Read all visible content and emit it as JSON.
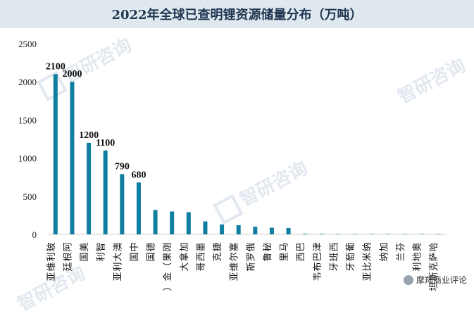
{
  "chart_data": {
    "type": "bar",
    "title": "2022年全球已查明锂资源储量分布（万吨）",
    "categories": [
      "玻利维亚",
      "阿根廷",
      "美国",
      "智利",
      "澳大利亚",
      "中国",
      "德国",
      "刚果（金）",
      "加拿大",
      "墨西哥",
      "捷克",
      "塞尔维亚",
      "俄罗斯",
      "秘鲁",
      "马里",
      "巴西",
      "津巴布韦",
      "西班牙",
      "葡萄牙",
      "纳米比亚",
      "加纳",
      "芬兰",
      "奥地利",
      "哈萨克斯坦"
    ],
    "values": [
      2100,
      2000,
      1200,
      1100,
      790,
      680,
      320,
      300,
      290,
      170,
      130,
      120,
      100,
      88,
      84,
      8,
      6,
      5,
      5,
      5,
      5,
      5,
      5,
      5
    ],
    "data_labels": [
      "2100",
      "2000",
      "1200",
      "1100",
      "790",
      "680",
      "",
      "",
      "",
      "",
      "",
      "",
      "",
      "",
      "",
      "",
      "",
      "",
      "",
      "",
      "",
      "",
      "",
      ""
    ],
    "ylim": [
      0,
      2500
    ],
    "yticks": [
      0,
      500,
      1000,
      1500,
      2000,
      2500
    ],
    "xlabel": "",
    "ylabel": "",
    "bar_color": "#0f7ea0",
    "grid": false
  },
  "watermark": {
    "brand": "智研咨询"
  },
  "footer": {
    "brand": "摩羯商业评论"
  }
}
